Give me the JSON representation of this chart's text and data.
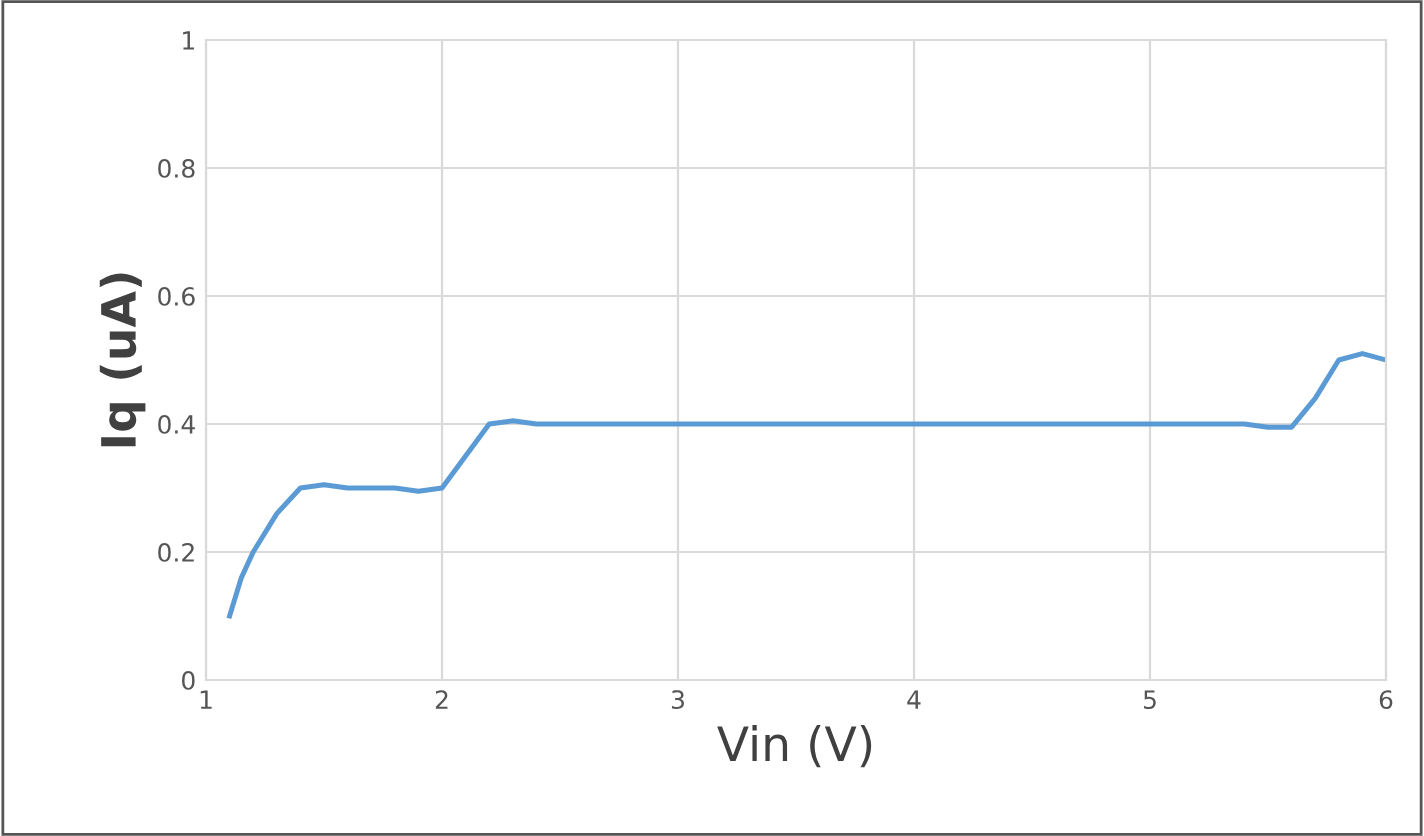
{
  "chart_data": {
    "type": "line",
    "xlabel": "Vin (V)",
    "ylabel": "Iq (uA)",
    "xlim": [
      1,
      6
    ],
    "xticks": [
      1,
      2,
      3,
      4,
      5,
      6
    ],
    "ylim": [
      0,
      1
    ],
    "yticks": [
      0,
      0.2,
      0.4,
      0.6,
      0.8,
      1
    ],
    "grid": true,
    "legend": false,
    "marker": "none",
    "line_style": "solid",
    "series": [
      {
        "color": "#5b9bd5",
        "x": [
          1.1,
          1.15,
          1.2,
          1.3,
          1.4,
          1.5,
          1.6,
          1.8,
          1.9,
          2.0,
          2.1,
          2.2,
          2.3,
          2.4,
          3,
          4,
          5,
          5.4,
          5.5,
          5.6,
          5.7,
          5.8,
          5.9,
          6.0
        ],
        "values": [
          0.1,
          0.16,
          0.2,
          0.26,
          0.3,
          0.305,
          0.3,
          0.3,
          0.295,
          0.3,
          0.35,
          0.4,
          0.405,
          0.4,
          0.4,
          0.4,
          0.4,
          0.4,
          0.395,
          0.395,
          0.44,
          0.5,
          0.51,
          0.5
        ]
      }
    ]
  }
}
